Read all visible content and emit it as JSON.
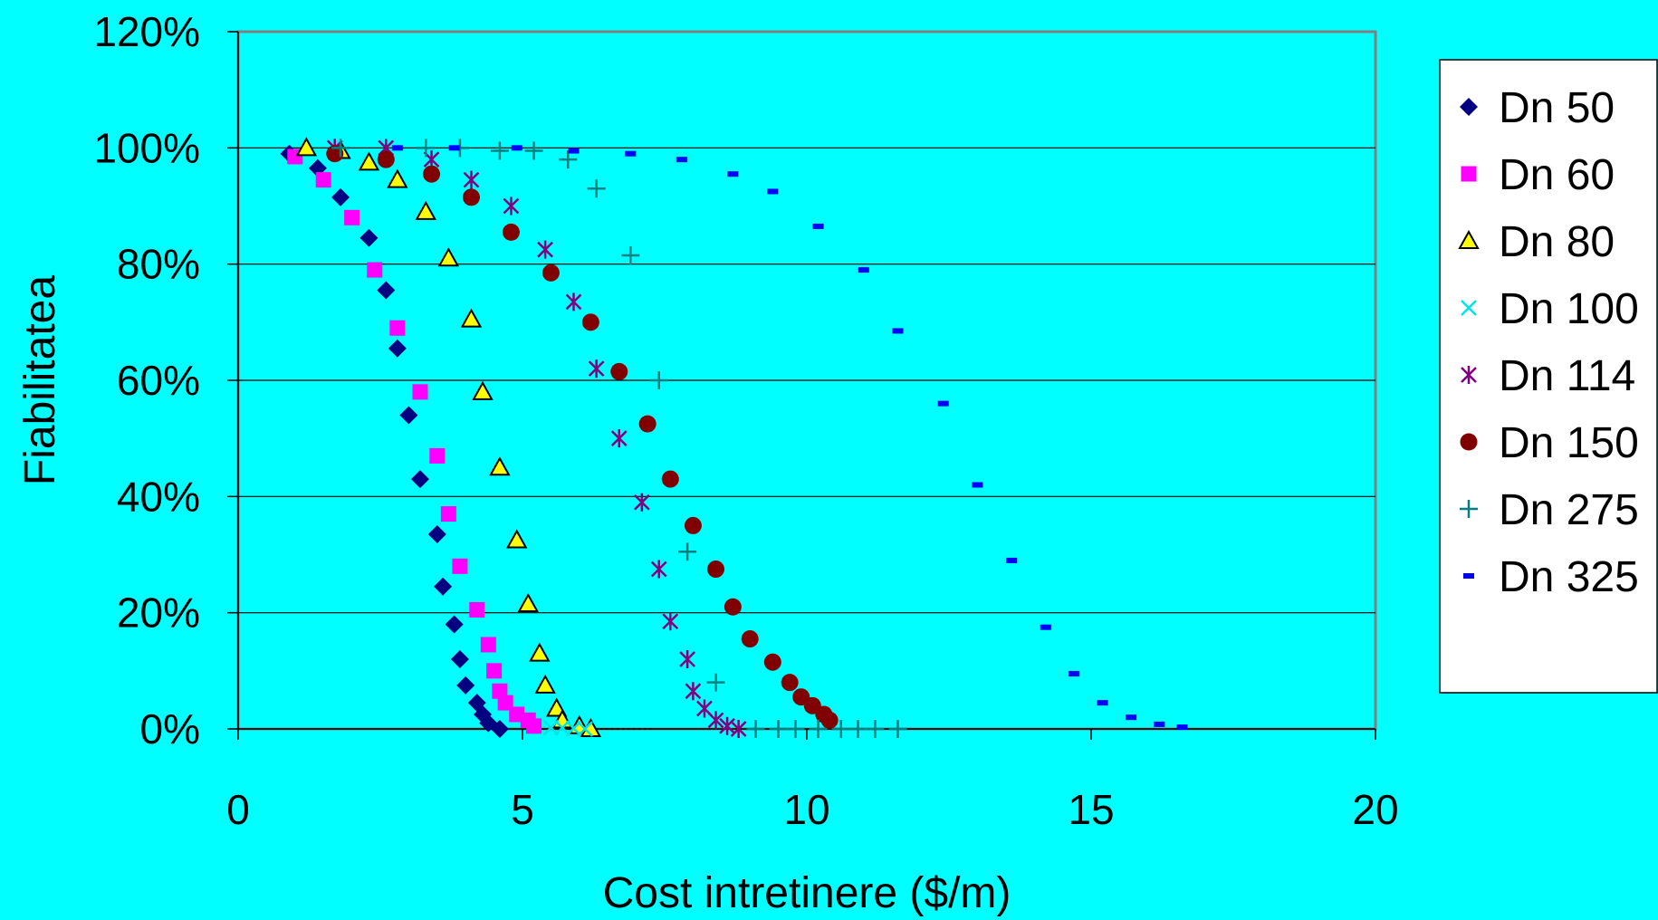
{
  "chart_data": {
    "type": "scatter",
    "title": "",
    "xlabel": "Cost intretinere ($/m)",
    "ylabel": "Fiabilitatea",
    "xlim": [
      0,
      20
    ],
    "ylim": [
      0,
      1.2
    ],
    "x_ticks": [
      "0",
      "5",
      "10",
      "15",
      "20"
    ],
    "y_ticks": [
      "0%",
      "20%",
      "40%",
      "60%",
      "80%",
      "100%",
      "120%"
    ],
    "grid": "horizontal",
    "legend_position": "right",
    "series": [
      {
        "name": "Dn 50",
        "marker": "diamond",
        "color": "#000080",
        "points": [
          [
            0.9,
            0.99
          ],
          [
            1.4,
            0.965
          ],
          [
            1.8,
            0.915
          ],
          [
            2.3,
            0.845
          ],
          [
            2.6,
            0.755
          ],
          [
            2.8,
            0.655
          ],
          [
            3.0,
            0.54
          ],
          [
            3.2,
            0.43
          ],
          [
            3.5,
            0.335
          ],
          [
            3.6,
            0.245
          ],
          [
            3.8,
            0.18
          ],
          [
            3.9,
            0.12
          ],
          [
            4.0,
            0.075
          ],
          [
            4.2,
            0.045
          ],
          [
            4.3,
            0.025
          ],
          [
            4.4,
            0.01
          ],
          [
            4.6,
            0.0
          ]
        ]
      },
      {
        "name": "Dn 60",
        "marker": "square",
        "color": "#ff00ff",
        "points": [
          [
            1.0,
            0.985
          ],
          [
            1.5,
            0.945
          ],
          [
            2.0,
            0.88
          ],
          [
            2.4,
            0.79
          ],
          [
            2.8,
            0.69
          ],
          [
            3.2,
            0.58
          ],
          [
            3.5,
            0.47
          ],
          [
            3.7,
            0.37
          ],
          [
            3.9,
            0.28
          ],
          [
            4.2,
            0.205
          ],
          [
            4.4,
            0.145
          ],
          [
            4.5,
            0.1
          ],
          [
            4.6,
            0.065
          ],
          [
            4.7,
            0.045
          ],
          [
            4.9,
            0.025
          ],
          [
            5.1,
            0.015
          ],
          [
            5.2,
            0.005
          ]
        ]
      },
      {
        "name": "Dn 80",
        "marker": "triangle",
        "color": "#ffff00",
        "points": [
          [
            1.2,
            1.0
          ],
          [
            1.8,
            0.995
          ],
          [
            2.3,
            0.975
          ],
          [
            2.8,
            0.945
          ],
          [
            3.3,
            0.89
          ],
          [
            3.7,
            0.81
          ],
          [
            4.1,
            0.705
          ],
          [
            4.3,
            0.58
          ],
          [
            4.6,
            0.45
          ],
          [
            4.9,
            0.325
          ],
          [
            5.1,
            0.215
          ],
          [
            5.3,
            0.13
          ],
          [
            5.4,
            0.075
          ],
          [
            5.6,
            0.035
          ],
          [
            5.7,
            0.015
          ],
          [
            6.0,
            0.005
          ],
          [
            6.2,
            0.0
          ]
        ]
      },
      {
        "name": "Dn 100",
        "marker": "x",
        "color": "#00e5e5",
        "points": [
          [
            5.5,
            0.002
          ],
          [
            5.7,
            0.002
          ],
          [
            5.9,
            0.001
          ],
          [
            6.1,
            0.0
          ]
        ]
      },
      {
        "name": "Dn 114",
        "marker": "star",
        "color": "#800080",
        "points": [
          [
            1.7,
            1.0
          ],
          [
            2.6,
            1.0
          ],
          [
            3.4,
            0.98
          ],
          [
            4.1,
            0.945
          ],
          [
            4.8,
            0.9
          ],
          [
            5.4,
            0.825
          ],
          [
            5.9,
            0.735
          ],
          [
            6.3,
            0.62
          ],
          [
            6.7,
            0.5
          ],
          [
            7.1,
            0.39
          ],
          [
            7.4,
            0.275
          ],
          [
            7.6,
            0.185
          ],
          [
            7.9,
            0.12
          ],
          [
            8.0,
            0.065
          ],
          [
            8.2,
            0.035
          ],
          [
            8.4,
            0.015
          ],
          [
            8.6,
            0.005
          ],
          [
            8.8,
            0.0
          ]
        ]
      },
      {
        "name": "Dn 150",
        "marker": "circle",
        "color": "#800000",
        "points": [
          [
            1.7,
            0.99
          ],
          [
            2.6,
            0.98
          ],
          [
            3.4,
            0.955
          ],
          [
            4.1,
            0.915
          ],
          [
            4.8,
            0.855
          ],
          [
            5.5,
            0.785
          ],
          [
            6.2,
            0.7
          ],
          [
            6.7,
            0.615
          ],
          [
            7.2,
            0.525
          ],
          [
            7.6,
            0.43
          ],
          [
            8.0,
            0.35
          ],
          [
            8.4,
            0.275
          ],
          [
            8.7,
            0.21
          ],
          [
            9.0,
            0.155
          ],
          [
            9.4,
            0.115
          ],
          [
            9.7,
            0.08
          ],
          [
            9.9,
            0.055
          ],
          [
            10.1,
            0.04
          ],
          [
            10.3,
            0.025
          ],
          [
            10.4,
            0.015
          ]
        ]
      },
      {
        "name": "Dn 275",
        "marker": "plus",
        "color": "#008080",
        "points": [
          [
            1.8,
            1.0
          ],
          [
            3.3,
            1.0
          ],
          [
            3.9,
            1.0
          ],
          [
            4.6,
            0.995
          ],
          [
            5.2,
            0.995
          ],
          [
            5.8,
            0.98
          ],
          [
            6.3,
            0.93
          ],
          [
            6.9,
            0.815
          ],
          [
            7.4,
            0.6
          ],
          [
            7.9,
            0.305
          ],
          [
            8.4,
            0.08
          ],
          [
            9.1,
            0.0
          ],
          [
            9.5,
            0.0
          ],
          [
            9.8,
            0.0
          ],
          [
            10.2,
            0.0
          ],
          [
            10.6,
            0.0
          ],
          [
            10.9,
            0.0
          ],
          [
            11.2,
            0.0
          ],
          [
            11.6,
            0.0
          ]
        ]
      },
      {
        "name": "Dn 325",
        "marker": "dash",
        "color": "#0000ff",
        "points": [
          [
            2.8,
            1.0
          ],
          [
            3.8,
            1.0
          ],
          [
            4.9,
            1.0
          ],
          [
            5.9,
            0.995
          ],
          [
            6.9,
            0.99
          ],
          [
            7.8,
            0.98
          ],
          [
            8.7,
            0.955
          ],
          [
            9.4,
            0.925
          ],
          [
            10.2,
            0.865
          ],
          [
            11.0,
            0.79
          ],
          [
            11.6,
            0.685
          ],
          [
            12.4,
            0.56
          ],
          [
            13.0,
            0.42
          ],
          [
            13.6,
            0.29
          ],
          [
            14.2,
            0.175
          ],
          [
            14.7,
            0.095
          ],
          [
            15.2,
            0.045
          ],
          [
            15.7,
            0.02
          ],
          [
            16.2,
            0.008
          ],
          [
            16.6,
            0.003
          ]
        ]
      }
    ]
  }
}
